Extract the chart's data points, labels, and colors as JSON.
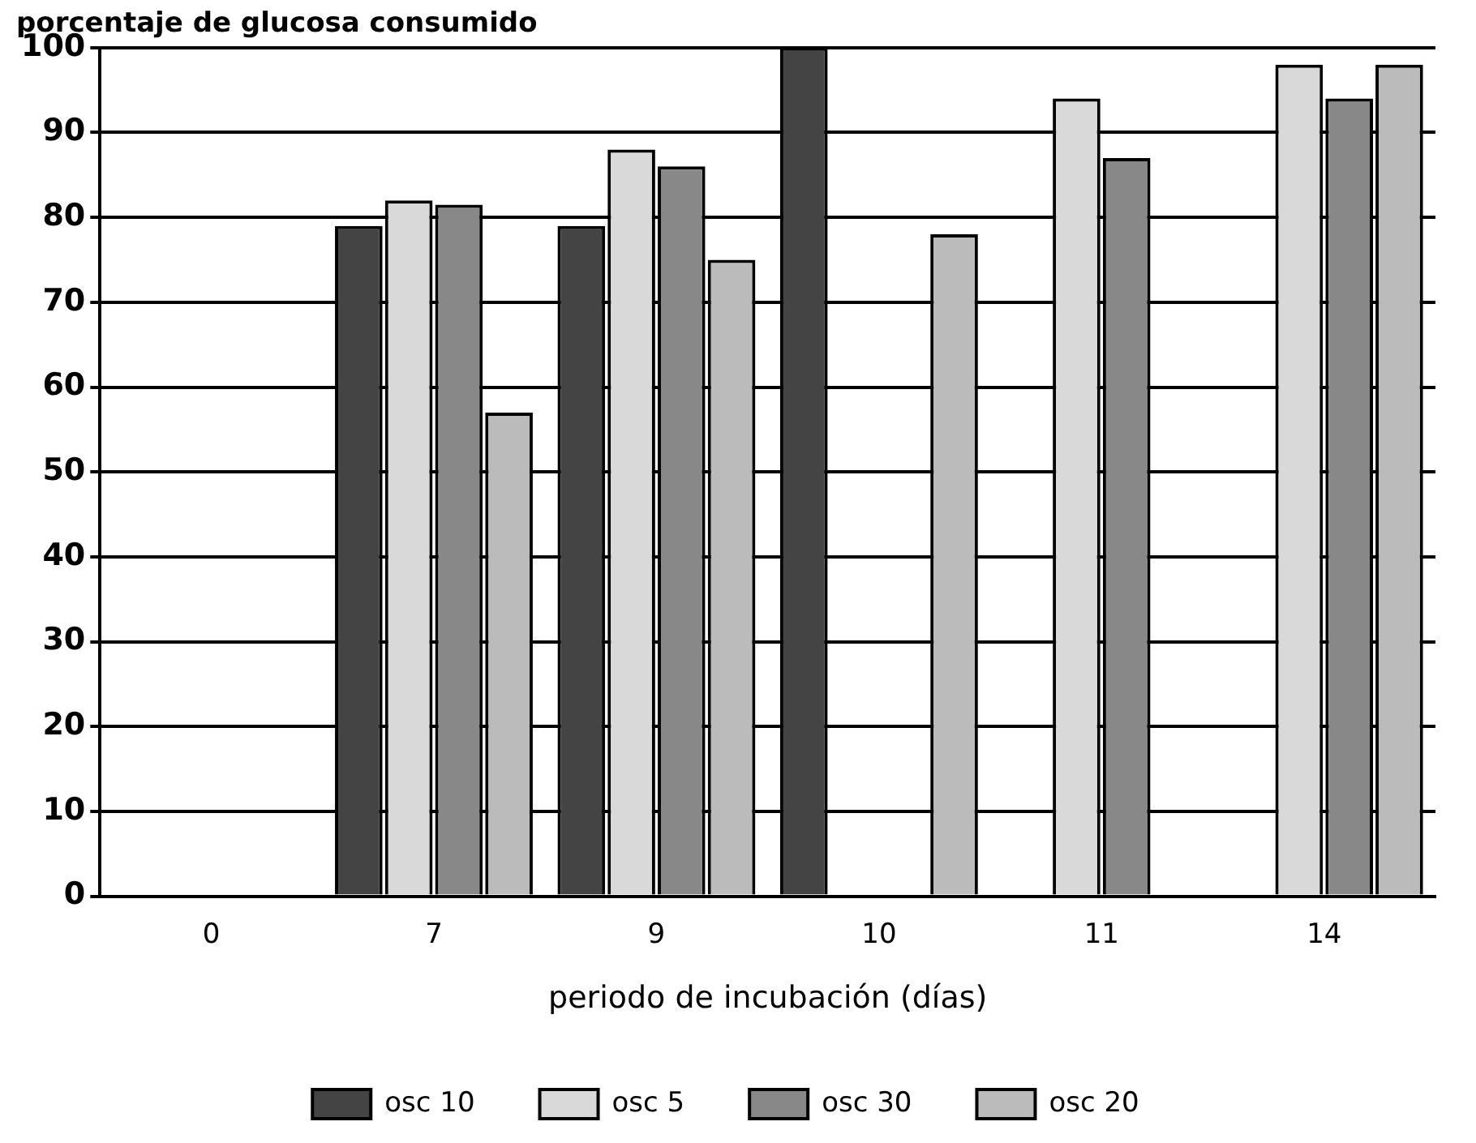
{
  "chart_data": {
    "type": "bar",
    "ylabel": "porcentaje de glucosa consumido",
    "xlabel": "periodo de incubación (días)",
    "categories": [
      "0",
      "7",
      "9",
      "10",
      "11",
      "14"
    ],
    "series": [
      {
        "name": "osc 10",
        "color": "#444444",
        "values": [
          0,
          79,
          79,
          100,
          null,
          null
        ]
      },
      {
        "name": "osc 5",
        "color": "#d9d9d9",
        "values": [
          0,
          82,
          88,
          null,
          94,
          98
        ]
      },
      {
        "name": "osc 30",
        "color": "#888888",
        "values": [
          0,
          81.5,
          86,
          null,
          87,
          94
        ]
      },
      {
        "name": "osc 20",
        "color": "#bbbbbb",
        "values": [
          0,
          57,
          75,
          78,
          null,
          98
        ]
      }
    ],
    "ylim": [
      0,
      100
    ],
    "yticks": [
      0,
      10,
      20,
      30,
      40,
      50,
      60,
      70,
      80,
      90,
      100
    ],
    "grid": "y",
    "legend": "bottom"
  }
}
